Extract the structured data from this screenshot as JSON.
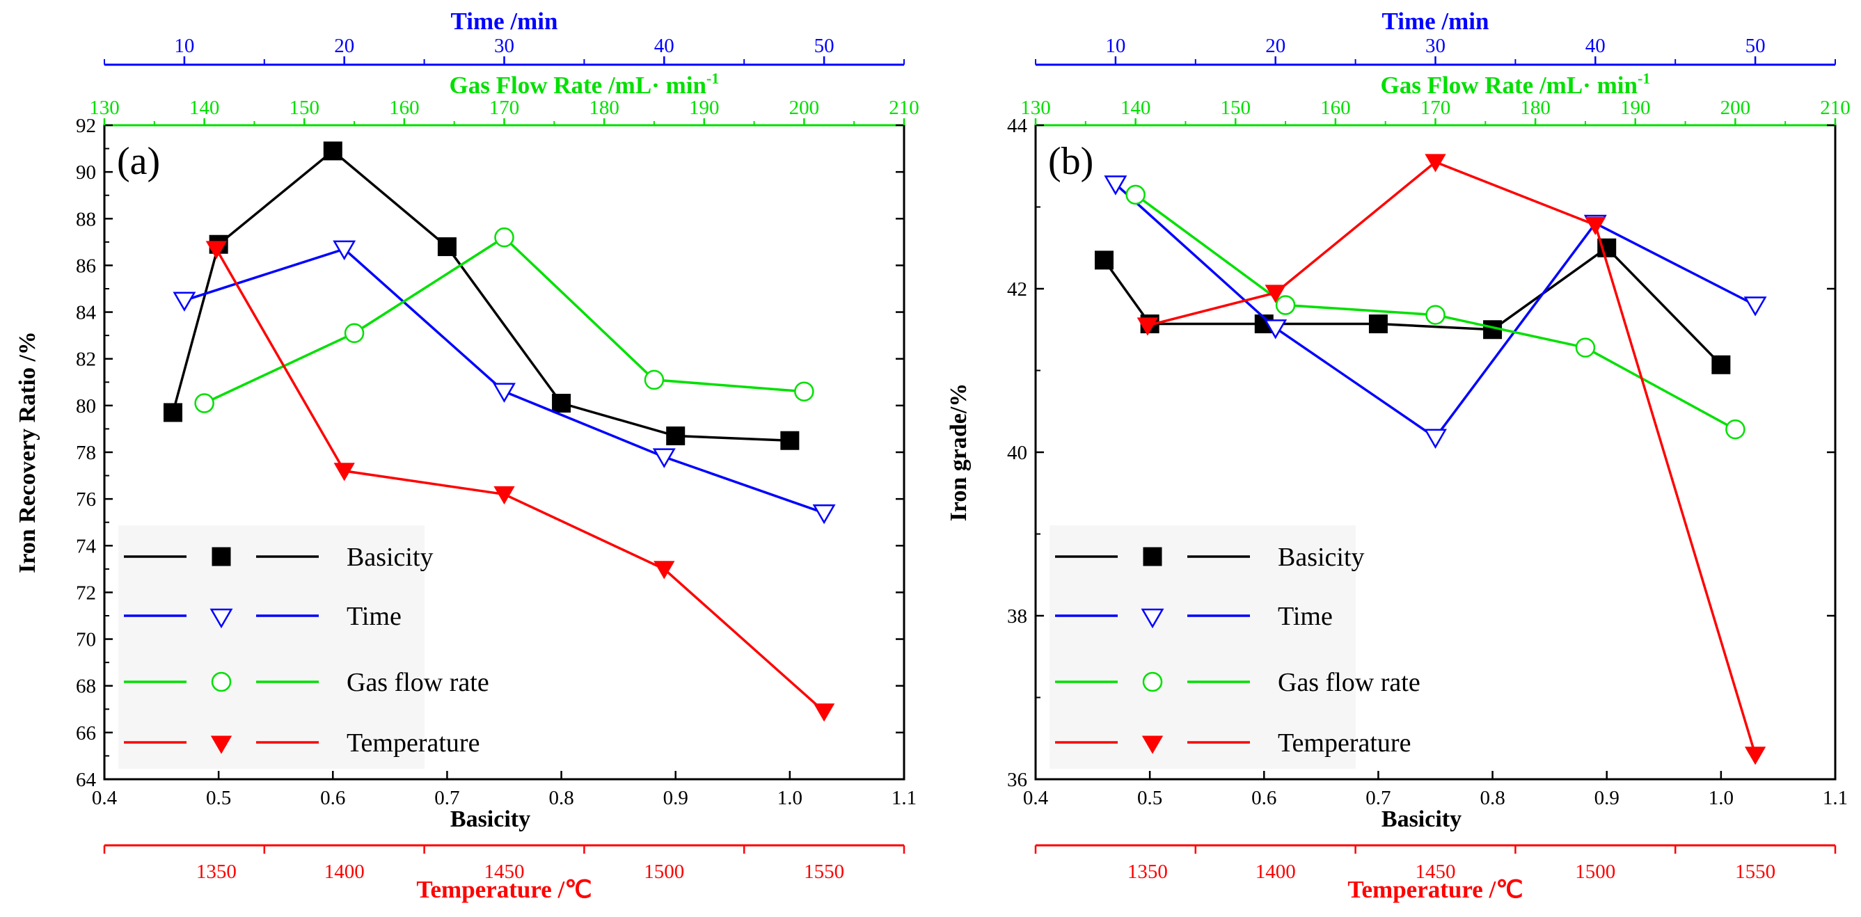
{
  "chart_data": [
    {
      "type": "line",
      "panel_label": "(a)",
      "ylabel": "Iron Recovery Ratio /%",
      "ylim": [
        64,
        92
      ],
      "yticks": [
        "64",
        "66",
        "68",
        "70",
        "72",
        "74",
        "76",
        "78",
        "80",
        "82",
        "84",
        "86",
        "88",
        "90",
        "92"
      ],
      "axes": {
        "basicity": {
          "label": "Basicity",
          "range": [
            0.4,
            1.1
          ],
          "ticks": [
            "0.4",
            "0.5",
            "0.6",
            "0.7",
            "0.8",
            "0.9",
            "1.0",
            "1.1"
          ]
        },
        "time": {
          "label": "Time /min",
          "ticks": [
            "10",
            "20",
            "30",
            "40",
            "50"
          ]
        },
        "gas_flow": {
          "label": "Gas Flow Rate /mL· min",
          "superscript": "-1",
          "range": [
            130,
            210
          ],
          "ticks": [
            "130",
            "140",
            "150",
            "160",
            "170",
            "180",
            "190",
            "200",
            "210"
          ]
        },
        "temperature": {
          "label": "Temperature /℃",
          "ticks": [
            "1350",
            "1400",
            "1450",
            "1500",
            "1550"
          ]
        }
      },
      "series": [
        {
          "name": "Basicity",
          "axis": "basicity",
          "color": "#000000",
          "marker": "filled-square",
          "x": [
            0.46,
            0.5,
            0.6,
            0.7,
            0.8,
            0.9,
            1.0
          ],
          "y": [
            79.7,
            86.9,
            90.9,
            86.8,
            80.1,
            78.7,
            78.5
          ]
        },
        {
          "name": "Time",
          "axis": "time",
          "color": "#0000ff",
          "marker": "open-triangle-down",
          "x": [
            10,
            20,
            30,
            40,
            50
          ],
          "y": [
            84.5,
            86.7,
            80.6,
            77.8,
            75.4
          ]
        },
        {
          "name": "Gas flow rate",
          "axis": "gas_flow",
          "color": "#00e000",
          "marker": "open-circle",
          "x": [
            140,
            155,
            170,
            185,
            200
          ],
          "y": [
            80.1,
            83.1,
            87.2,
            81.1,
            80.6
          ]
        },
        {
          "name": "Temperature",
          "axis": "temperature",
          "color": "#ff0000",
          "marker": "filled-triangle-down",
          "x": [
            1350,
            1400,
            1450,
            1500,
            1550
          ],
          "y": [
            86.7,
            77.2,
            76.2,
            73.0,
            66.9
          ]
        }
      ]
    },
    {
      "type": "line",
      "panel_label": "(b)",
      "ylabel": "Iron grade/%",
      "ylim": [
        36,
        44
      ],
      "yticks": [
        "36",
        "38",
        "40",
        "42",
        "44"
      ],
      "axes": {
        "basicity": {
          "label": "Basicity",
          "range": [
            0.4,
            1.1
          ],
          "ticks": [
            "0.4",
            "0.5",
            "0.6",
            "0.7",
            "0.8",
            "0.9",
            "1.0",
            "1.1"
          ]
        },
        "time": {
          "label": "Time /min",
          "ticks": [
            "10",
            "20",
            "30",
            "40",
            "50"
          ]
        },
        "gas_flow": {
          "label": "Gas Flow Rate /mL· min",
          "superscript": "-1",
          "range": [
            130,
            210
          ],
          "ticks": [
            "130",
            "140",
            "150",
            "160",
            "170",
            "180",
            "190",
            "200",
            "210"
          ]
        },
        "temperature": {
          "label": "Temperature /℃",
          "ticks": [
            "1350",
            "1400",
            "1450",
            "1500",
            "1550"
          ]
        }
      },
      "series": [
        {
          "name": "Basicity",
          "axis": "basicity",
          "color": "#000000",
          "marker": "filled-square",
          "x": [
            0.46,
            0.5,
            0.6,
            0.7,
            0.8,
            0.9,
            1.0
          ],
          "y": [
            42.35,
            41.57,
            41.57,
            41.57,
            41.5,
            42.5,
            41.07
          ]
        },
        {
          "name": "Time",
          "axis": "time",
          "color": "#0000ff",
          "marker": "open-triangle-down",
          "x": [
            10,
            20,
            30,
            40,
            50
          ],
          "y": [
            43.28,
            41.52,
            40.18,
            42.8,
            41.8
          ]
        },
        {
          "name": "Gas flow rate",
          "axis": "gas_flow",
          "color": "#00e000",
          "marker": "open-circle",
          "x": [
            140,
            155,
            170,
            185,
            200
          ],
          "y": [
            43.15,
            41.8,
            41.68,
            41.28,
            40.28
          ]
        },
        {
          "name": "Temperature",
          "axis": "temperature",
          "color": "#ff0000",
          "marker": "filled-triangle-down",
          "x": [
            1350,
            1400,
            1450,
            1500,
            1550
          ],
          "y": [
            41.55,
            41.95,
            43.55,
            42.78,
            36.3
          ]
        }
      ]
    }
  ]
}
